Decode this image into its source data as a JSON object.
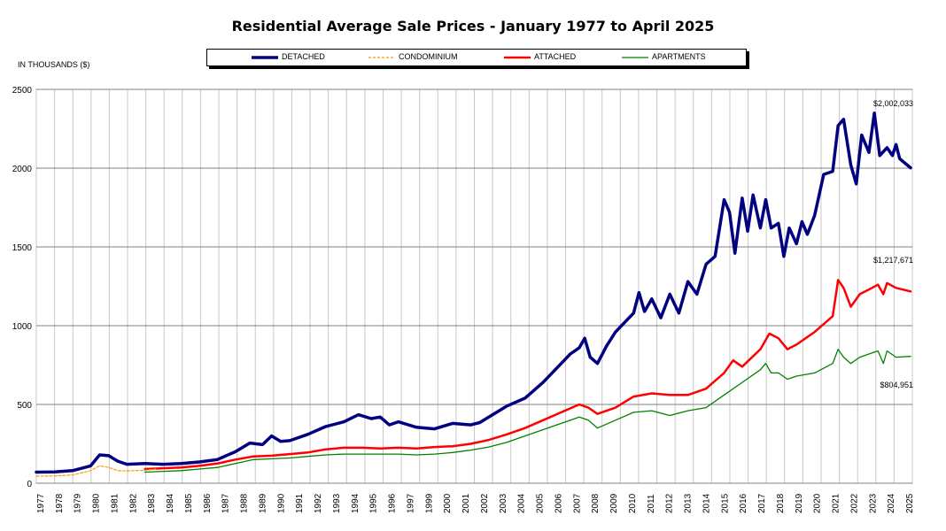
{
  "chart_data": {
    "type": "line",
    "title": "Residential Average Sale Prices  -  January 1977 to April 2025",
    "ylabel": "IN THOUSANDS ($)",
    "ylim": [
      0,
      2500
    ],
    "y_ticks": [
      0,
      500,
      1000,
      1500,
      2000,
      2500
    ],
    "x_tick_labels": [
      "1977",
      "1978",
      "1979",
      "1980",
      "1981",
      "1982",
      "1983",
      "1984",
      "1985",
      "1986",
      "1987",
      "1988",
      "1989",
      "1990",
      "1991",
      "1992",
      "1993",
      "1994",
      "1995",
      "1996",
      "1997",
      "1999",
      "2000",
      "2001",
      "2002",
      "2003",
      "2004",
      "2005",
      "2006",
      "2007",
      "2008",
      "2009",
      "2010",
      "2011",
      "2012",
      "2013",
      "2014",
      "2015",
      "2016",
      "2017",
      "2018",
      "2019",
      "2020",
      "2021",
      "2022",
      "2023",
      "2024",
      "2025"
    ],
    "grid": true,
    "legend_position": "top",
    "series": [
      {
        "name": "DETACHED",
        "color": "#000080",
        "style": "solid-thick",
        "points": [
          [
            1977,
            70
          ],
          [
            1978,
            72
          ],
          [
            1979,
            80
          ],
          [
            1980,
            110
          ],
          [
            1980.5,
            180
          ],
          [
            1981,
            175
          ],
          [
            1981.5,
            140
          ],
          [
            1982,
            120
          ],
          [
            1983,
            125
          ],
          [
            1984,
            120
          ],
          [
            1985,
            125
          ],
          [
            1986,
            135
          ],
          [
            1987,
            150
          ],
          [
            1988,
            200
          ],
          [
            1988.8,
            255
          ],
          [
            1989.5,
            245
          ],
          [
            1990,
            300
          ],
          [
            1990.5,
            265
          ],
          [
            1991,
            270
          ],
          [
            1992,
            310
          ],
          [
            1993,
            360
          ],
          [
            1994,
            390
          ],
          [
            1994.8,
            435
          ],
          [
            1995.5,
            410
          ],
          [
            1996,
            420
          ],
          [
            1996.5,
            370
          ],
          [
            1997,
            390
          ],
          [
            1998,
            355
          ],
          [
            1999,
            345
          ],
          [
            2000,
            380
          ],
          [
            2000.5,
            375
          ],
          [
            2001,
            370
          ],
          [
            2001.5,
            385
          ],
          [
            2002,
            420
          ],
          [
            2003,
            490
          ],
          [
            2004,
            540
          ],
          [
            2005,
            640
          ],
          [
            2006,
            760
          ],
          [
            2006.5,
            820
          ],
          [
            2007,
            860
          ],
          [
            2007.3,
            920
          ],
          [
            2007.6,
            800
          ],
          [
            2008,
            760
          ],
          [
            2008.5,
            870
          ],
          [
            2009,
            960
          ],
          [
            2009.5,
            1020
          ],
          [
            2010,
            1080
          ],
          [
            2010.3,
            1210
          ],
          [
            2010.6,
            1090
          ],
          [
            2011,
            1170
          ],
          [
            2011.5,
            1050
          ],
          [
            2012,
            1200
          ],
          [
            2012.5,
            1080
          ],
          [
            2013,
            1280
          ],
          [
            2013.5,
            1200
          ],
          [
            2014,
            1390
          ],
          [
            2014.5,
            1440
          ],
          [
            2015,
            1800
          ],
          [
            2015.3,
            1720
          ],
          [
            2015.6,
            1460
          ],
          [
            2016,
            1810
          ],
          [
            2016.3,
            1600
          ],
          [
            2016.6,
            1830
          ],
          [
            2017,
            1620
          ],
          [
            2017.3,
            1800
          ],
          [
            2017.6,
            1620
          ],
          [
            2018,
            1650
          ],
          [
            2018.3,
            1440
          ],
          [
            2018.6,
            1620
          ],
          [
            2019,
            1520
          ],
          [
            2019.3,
            1660
          ],
          [
            2019.6,
            1580
          ],
          [
            2020,
            1700
          ],
          [
            2020.5,
            1960
          ],
          [
            2021,
            1980
          ],
          [
            2021.3,
            2270
          ],
          [
            2021.6,
            2310
          ],
          [
            2022,
            2020
          ],
          [
            2022.3,
            1900
          ],
          [
            2022.6,
            2210
          ],
          [
            2023,
            2100
          ],
          [
            2023.3,
            2350
          ],
          [
            2023.6,
            2080
          ],
          [
            2024,
            2130
          ],
          [
            2024.3,
            2080
          ],
          [
            2024.5,
            2150
          ],
          [
            2024.7,
            2060
          ],
          [
            2025.3,
            2002
          ]
        ]
      },
      {
        "name": "CONDOMINIUM",
        "color": "#ff9900",
        "style": "dashed",
        "points": [
          [
            1977,
            45
          ],
          [
            1978,
            46
          ],
          [
            1979,
            52
          ],
          [
            1980,
            80
          ],
          [
            1980.5,
            110
          ],
          [
            1981,
            100
          ],
          [
            1981.5,
            80
          ],
          [
            1982,
            78
          ],
          [
            1983,
            82
          ],
          [
            1983.6,
            90
          ]
        ]
      },
      {
        "name": "ATTACHED",
        "color": "#ff0000",
        "style": "solid-medium",
        "points": [
          [
            1983,
            90
          ],
          [
            1984,
            95
          ],
          [
            1985,
            100
          ],
          [
            1986,
            110
          ],
          [
            1987,
            125
          ],
          [
            1988,
            150
          ],
          [
            1989,
            170
          ],
          [
            1990,
            175
          ],
          [
            1991,
            185
          ],
          [
            1992,
            195
          ],
          [
            1993,
            215
          ],
          [
            1994,
            225
          ],
          [
            1995,
            225
          ],
          [
            1996,
            220
          ],
          [
            1997,
            225
          ],
          [
            1998,
            220
          ],
          [
            1999,
            230
          ],
          [
            2000,
            235
          ],
          [
            2001,
            250
          ],
          [
            2002,
            275
          ],
          [
            2003,
            310
          ],
          [
            2004,
            350
          ],
          [
            2005,
            400
          ],
          [
            2006,
            450
          ],
          [
            2007,
            500
          ],
          [
            2007.5,
            480
          ],
          [
            2008,
            440
          ],
          [
            2009,
            480
          ],
          [
            2010,
            550
          ],
          [
            2011,
            570
          ],
          [
            2012,
            560
          ],
          [
            2013,
            560
          ],
          [
            2014,
            600
          ],
          [
            2015,
            700
          ],
          [
            2015.5,
            780
          ],
          [
            2016,
            740
          ],
          [
            2017,
            850
          ],
          [
            2017.5,
            950
          ],
          [
            2018,
            920
          ],
          [
            2018.5,
            850
          ],
          [
            2019,
            880
          ],
          [
            2020,
            960
          ],
          [
            2021,
            1060
          ],
          [
            2021.3,
            1290
          ],
          [
            2021.6,
            1240
          ],
          [
            2022,
            1120
          ],
          [
            2022.5,
            1200
          ],
          [
            2023,
            1230
          ],
          [
            2023.5,
            1260
          ],
          [
            2023.8,
            1200
          ],
          [
            2024,
            1270
          ],
          [
            2024.5,
            1240
          ],
          [
            2025.3,
            1217.671
          ]
        ]
      },
      {
        "name": "APARTMENTS",
        "color": "#008000",
        "style": "solid-thin",
        "points": [
          [
            1983,
            70
          ],
          [
            1984,
            75
          ],
          [
            1985,
            80
          ],
          [
            1986,
            90
          ],
          [
            1987,
            100
          ],
          [
            1988,
            125
          ],
          [
            1989,
            150
          ],
          [
            1990,
            155
          ],
          [
            1991,
            160
          ],
          [
            1992,
            170
          ],
          [
            1993,
            180
          ],
          [
            1994,
            185
          ],
          [
            1995,
            185
          ],
          [
            1996,
            185
          ],
          [
            1997,
            185
          ],
          [
            1998,
            180
          ],
          [
            1999,
            185
          ],
          [
            2000,
            195
          ],
          [
            2001,
            210
          ],
          [
            2002,
            230
          ],
          [
            2003,
            260
          ],
          [
            2004,
            300
          ],
          [
            2005,
            340
          ],
          [
            2006,
            380
          ],
          [
            2007,
            420
          ],
          [
            2007.5,
            400
          ],
          [
            2008,
            350
          ],
          [
            2009,
            400
          ],
          [
            2010,
            450
          ],
          [
            2011,
            460
          ],
          [
            2012,
            430
          ],
          [
            2013,
            460
          ],
          [
            2014,
            480
          ],
          [
            2015,
            560
          ],
          [
            2016,
            640
          ],
          [
            2017,
            720
          ],
          [
            2017.3,
            760
          ],
          [
            2017.6,
            700
          ],
          [
            2018,
            700
          ],
          [
            2018.5,
            660
          ],
          [
            2019,
            680
          ],
          [
            2020,
            700
          ],
          [
            2021,
            760
          ],
          [
            2021.3,
            850
          ],
          [
            2021.6,
            800
          ],
          [
            2022,
            760
          ],
          [
            2022.5,
            800
          ],
          [
            2023,
            820
          ],
          [
            2023.5,
            840
          ],
          [
            2023.8,
            760
          ],
          [
            2024,
            840
          ],
          [
            2024.5,
            800
          ],
          [
            2025.3,
            804.951
          ]
        ]
      }
    ],
    "annotations": {
      "detached_last": "$2,002,033",
      "attached_last": "$1,217,671",
      "apartments_last": "$804,951"
    }
  }
}
